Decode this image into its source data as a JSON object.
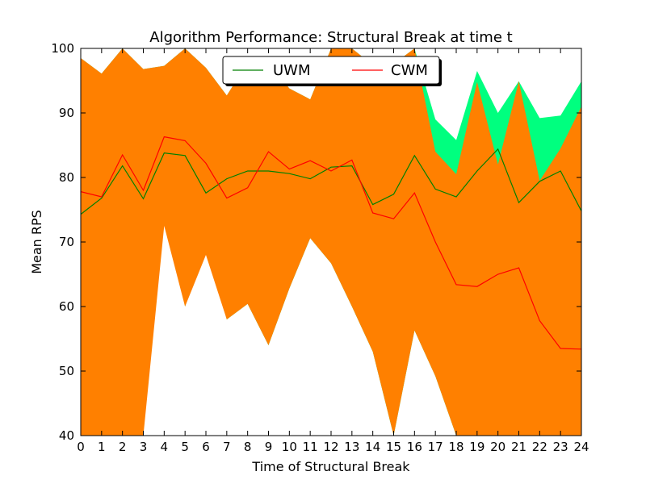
{
  "chart_data": {
    "type": "line",
    "title": "Algorithm Performance: Structural Break at time t",
    "xlabel": "Time of Structural Break",
    "ylabel": "Mean RPS",
    "x": [
      0,
      1,
      2,
      3,
      4,
      5,
      6,
      7,
      8,
      9,
      10,
      11,
      12,
      13,
      14,
      15,
      16,
      17,
      18,
      19,
      20,
      21,
      22,
      23,
      24
    ],
    "xlim": [
      0,
      24
    ],
    "ylim": [
      40,
      100
    ],
    "yticks": [
      40,
      50,
      60,
      70,
      80,
      90,
      100
    ],
    "grid": false,
    "legend_position": "top-center",
    "series": [
      {
        "name": "UWM",
        "color": "#008000",
        "band_color": "#00ff7f",
        "values": [
          74.3,
          76.8,
          81.8,
          76.7,
          83.8,
          83.4,
          77.6,
          79.8,
          81.0,
          81.0,
          80.6,
          79.8,
          81.6,
          81.8,
          75.8,
          77.4,
          83.4,
          78.2,
          77.0,
          81.0,
          84.4,
          76.1,
          79.4,
          81.0,
          74.8
        ],
        "upper": [
          98.5,
          96.1,
          100.0,
          96.8,
          97.3,
          100.0,
          97.0,
          92.7,
          97.8,
          97.8,
          93.8,
          92.1,
          100.0,
          100.0,
          97.4,
          97.6,
          100.0,
          89.0,
          85.8,
          96.5,
          90.0,
          94.9,
          89.2,
          89.6,
          94.9
        ],
        "lower": [
          40.0,
          40.0,
          40.0,
          43.6,
          77.3,
          60.0,
          70.0,
          58.0,
          60.4,
          54.0,
          62.8,
          70.6,
          66.7,
          60.0,
          53.0,
          40.0,
          56.3,
          49.2,
          40.0,
          40.0,
          40.0,
          46.7,
          40.0,
          40.0,
          40.0
        ]
      },
      {
        "name": "CWM",
        "color": "#ff0000",
        "band_color": "#ff8000",
        "values": [
          77.8,
          77.0,
          83.5,
          78.0,
          86.3,
          85.7,
          82.2,
          76.8,
          78.4,
          84.0,
          81.3,
          82.6,
          81.0,
          82.7,
          74.5,
          73.6,
          77.6,
          70.0,
          63.4,
          63.1,
          65.0,
          66.0,
          57.8,
          53.5,
          53.4
        ],
        "upper": [
          98.5,
          96.1,
          100.0,
          96.8,
          97.3,
          100.0,
          97.0,
          92.7,
          97.8,
          97.8,
          93.8,
          92.1,
          100.0,
          100.0,
          97.4,
          97.6,
          100.0,
          84.0,
          80.5,
          94.8,
          82.0,
          94.9,
          79.5,
          84.5,
          91.0
        ],
        "lower": [
          40.0,
          40.0,
          40.0,
          40.0,
          72.5,
          60.0,
          68.0,
          58.0,
          60.4,
          54.0,
          62.8,
          70.6,
          66.7,
          60.0,
          53.0,
          40.0,
          56.3,
          49.2,
          40.0,
          40.0,
          40.0,
          40.0,
          40.0,
          40.0,
          40.0
        ]
      }
    ]
  }
}
